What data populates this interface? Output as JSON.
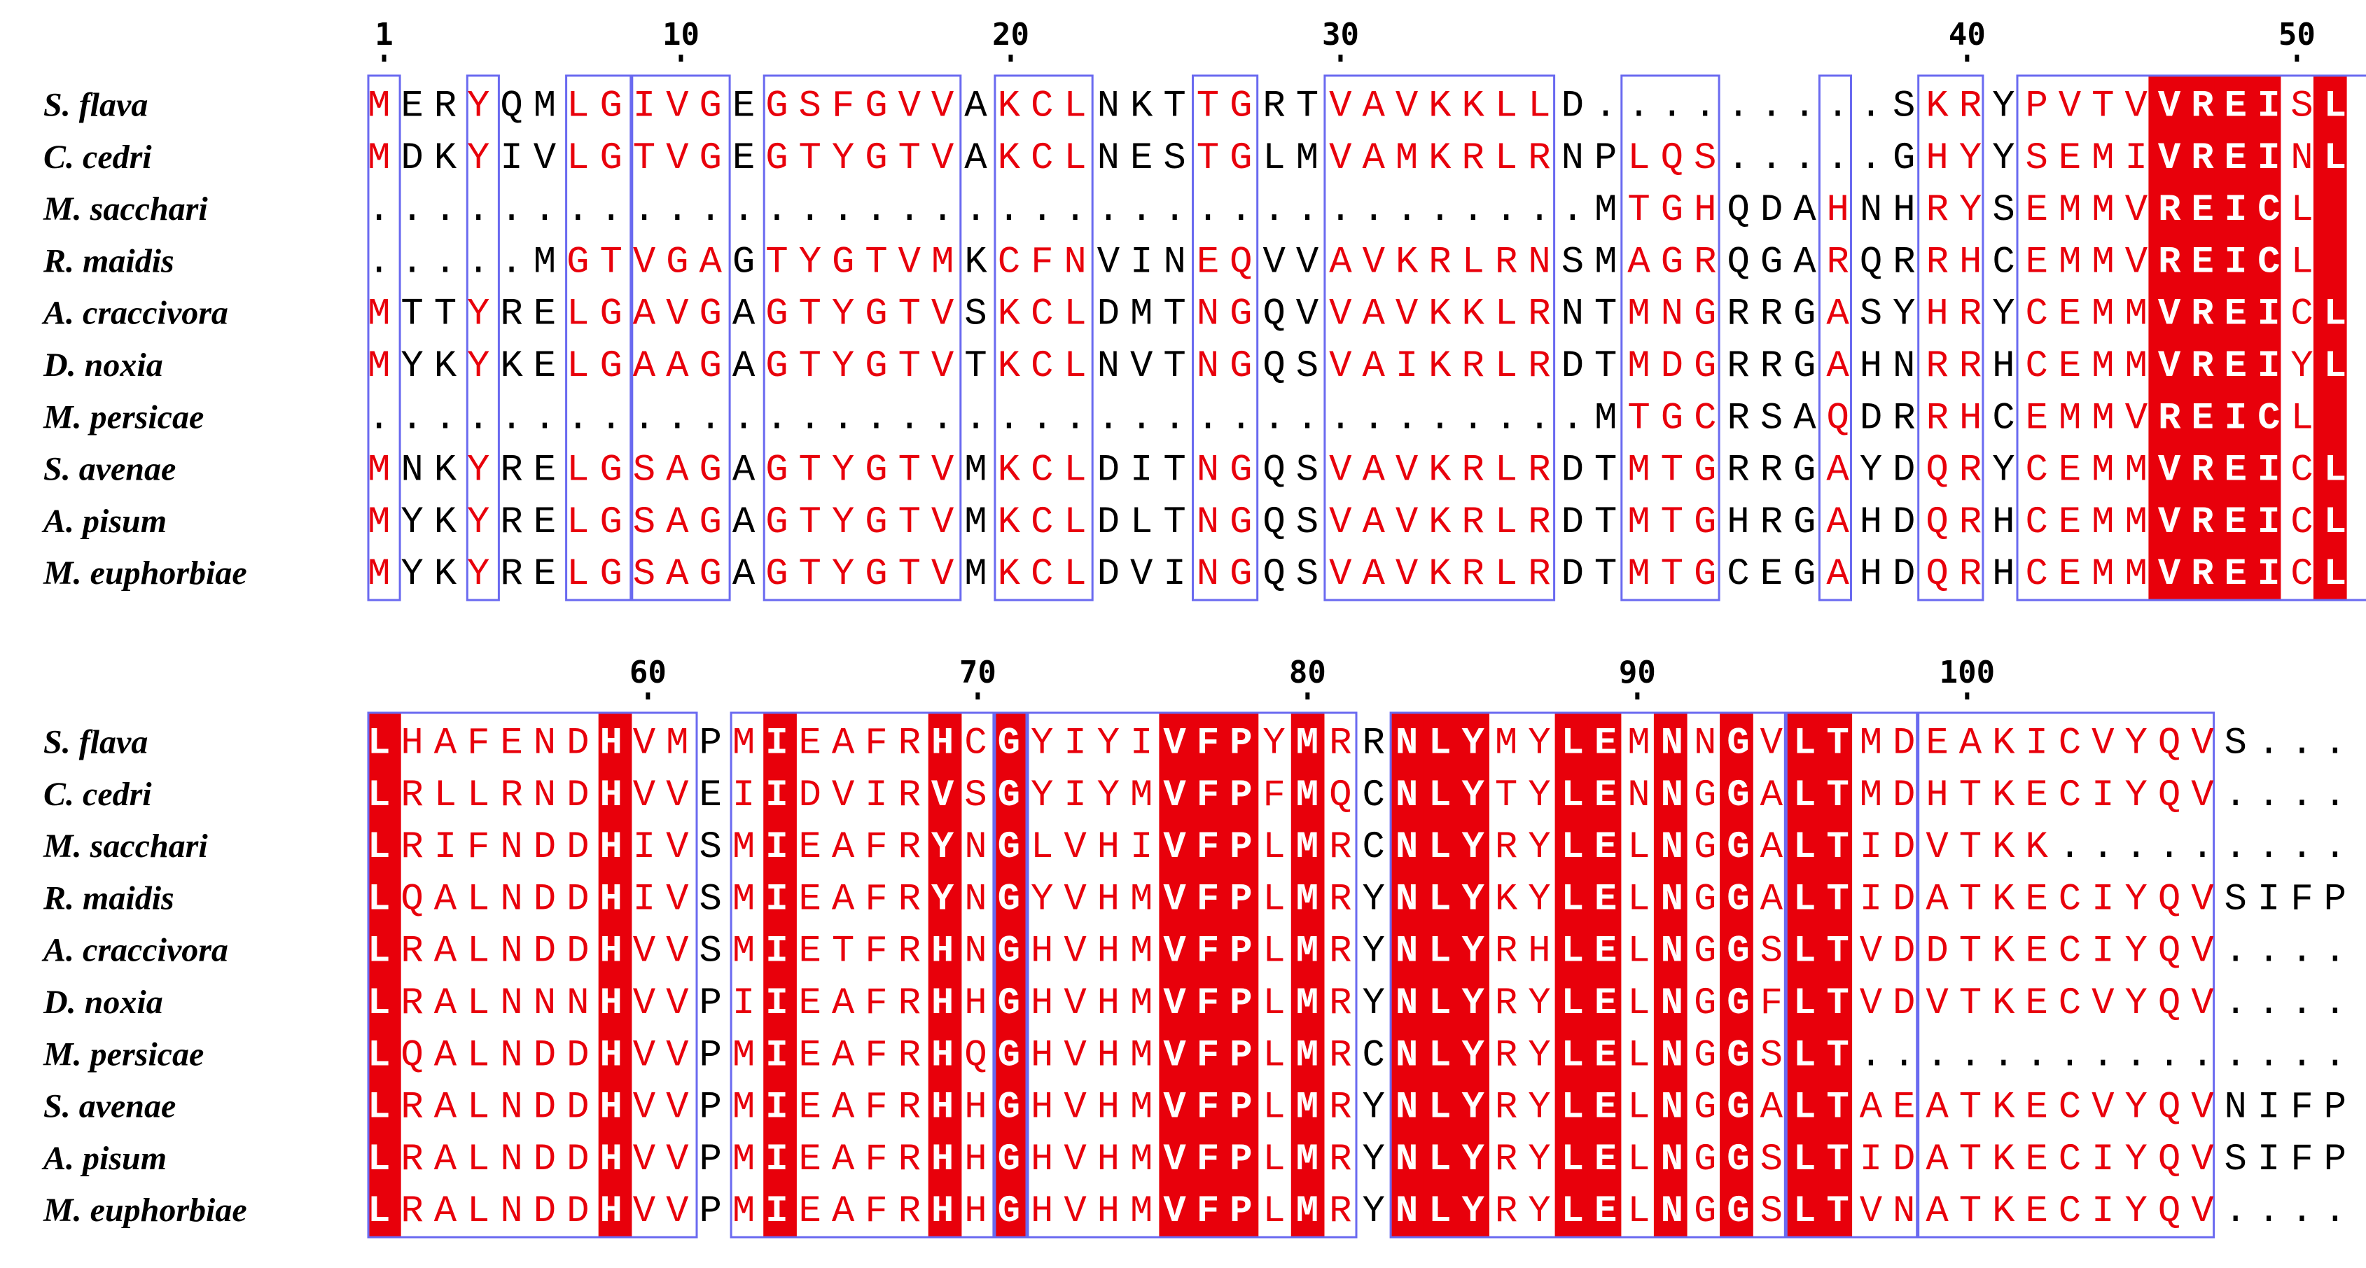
{
  "colors": {
    "identical_bg": "#e8000b",
    "similar_text": "#e8000b",
    "box_border": "#6a6af0",
    "plain_text": "#000000",
    "identical_text": "#ffffff"
  },
  "blocks": [
    {
      "ticks": [
        {
          "label": "1",
          "col": 0
        },
        {
          "label": "10",
          "col": 9
        },
        {
          "label": "20",
          "col": 19
        },
        {
          "label": "30",
          "col": 29
        },
        {
          "label": "40",
          "col": 48
        },
        {
          "label": "50",
          "col": 58
        }
      ],
      "sequences": [
        {
          "name": "S. flava",
          "residues": "MERYQMLGIVGEGSFGVVAKCLNKTTGRTVAVKKLLD.........SKRYPVTVVREISL"
        },
        {
          "name": "C. cedri",
          "residues": "MDKYIVLGTVGEGTYGTVAKCLNESTGLMVAMKRLRNPLQS.....GHYYSEMIVREINL"
        },
        {
          "name": "M. sacchari",
          "residues": ".....................................MTGHQDAHNHRYSEMMVREICL"
        },
        {
          "name": "R. maidis",
          "residues": ".....MGTVGAGTYGTVMKCFNVINEQVVAVKRLRNSMAGRQGARQRRHCEMMVREICL"
        },
        {
          "name": "A. craccivora",
          "residues": "MTTYRELGAVGAGTYGTVSKCLDMTNGQVVAVKKLRNTMNGRRGASYHRYCEMMVREICL"
        },
        {
          "name": "D. noxia",
          "residues": "MYKYKELGAAGAGTYGTVTKCLNVTNGQSVAIKRLRDTMDGRRGAHNRRHCEMMVREIYL"
        },
        {
          "name": "M. persicae",
          "residues": ".....................................MTGCRSAQDRRHCEMMVREICL"
        },
        {
          "name": "S. avenae",
          "residues": "MNKYRELGSAGAGTYGTVMKCLDITNGQSVAVKRLRDTMTGRRGAYDQRYCEMMVREICL"
        },
        {
          "name": "A. pisum",
          "residues": "MYKYRELGSAGAGTYGTVMKCLDLTNGQSVAVKRLRDTMTGHRGAHDQRHCEMMVREICL"
        },
        {
          "name": "M. euphorbiae",
          "residues": "MYKYRELGSAGAGTYGTVMKCLDVINGQSVAVKRLRDTMTGCEGAHDQRHCEMMVREICL"
        }
      ],
      "red_cols": [
        54,
        55,
        56,
        57,
        59
      ],
      "boxes": [
        [
          0,
          0
        ],
        [
          3,
          3
        ],
        [
          6,
          7
        ],
        [
          8,
          10
        ],
        [
          12,
          17
        ],
        [
          19,
          21
        ],
        [
          25,
          26
        ],
        [
          29,
          35
        ],
        [
          38,
          40
        ],
        [
          44,
          44
        ],
        [
          47,
          48
        ],
        [
          50,
          60
        ]
      ]
    },
    {
      "ticks": [
        {
          "label": "60",
          "col": 8
        },
        {
          "label": "70",
          "col": 18
        },
        {
          "label": "80",
          "col": 28
        },
        {
          "label": "90",
          "col": 38
        },
        {
          "label": "100",
          "col": 48
        }
      ],
      "sequences": [
        {
          "name": "S. flava",
          "residues": "LHAFENDHVMPMIEAFRHCGYIYIVFPYMRRNLYMYLEMNNGVLTMDEAKICVYQVS..."
        },
        {
          "name": "C. cedri",
          "residues": "LRLLRNDHVVEIIDVIRVSGYIYMVFPFMQCNLYTYLENNGGALTMDHTKECIYQV...."
        },
        {
          "name": "M. sacchari",
          "residues": "LRIFNDDHIVSMIEAFRYNGLVHIVFPLMRCNLYRYLELNGGALTIDVTKK........."
        },
        {
          "name": "R. maidis",
          "residues": "LQALNDDHIVSMIEAFRYNGYVHMVFPLMRYNLYKYLELNGGALTIDATKECIYQVSIFP"
        },
        {
          "name": "A. craccivora",
          "residues": "LRALNDDHVVSMIETFRHNGHVHMVFPLMRYNLYRHLELNGGSLTVDDTKECIYQV...."
        },
        {
          "name": "D. noxia",
          "residues": "LRALNNNHVVPIIEAFRHHGHVHMVFPLMRYNLYRYLELNGGFLTVDVTKECVYQV...."
        },
        {
          "name": "M. persicae",
          "residues": "LQALNDDHVVPMIEAFRHQGHVHMVFPLMRCNLYRYLELNGGSLT..............."
        },
        {
          "name": "S. avenae",
          "residues": "LRALNDDHVVPMIEAFRHHGHVHMVFPLMRYNLYRYLELNGGALTAEATKECVYQVNIFP"
        },
        {
          "name": "A. pisum",
          "residues": "LRALNDDHVVPMIEAFRHHGHVHMVFPLMRYNLYRYLELNGGSLTIDATKECIYQVSIFP"
        },
        {
          "name": "M. euphorbiae",
          "residues": "LRALNDDHVVPMIEAFRHHGHVHMVFPLMRYNLYRYLELNGGSLTVNATKECIYQV...."
        }
      ],
      "red_cols": [
        0,
        7,
        12,
        17,
        19,
        24,
        25,
        26,
        28,
        31,
        32,
        33,
        36,
        37,
        39,
        41,
        43,
        44
      ],
      "boxes": [
        [
          0,
          9
        ],
        [
          11,
          18
        ],
        [
          19,
          19
        ],
        [
          20,
          29
        ],
        [
          31,
          42
        ],
        [
          43,
          46
        ],
        [
          47,
          55
        ]
      ]
    }
  ]
}
